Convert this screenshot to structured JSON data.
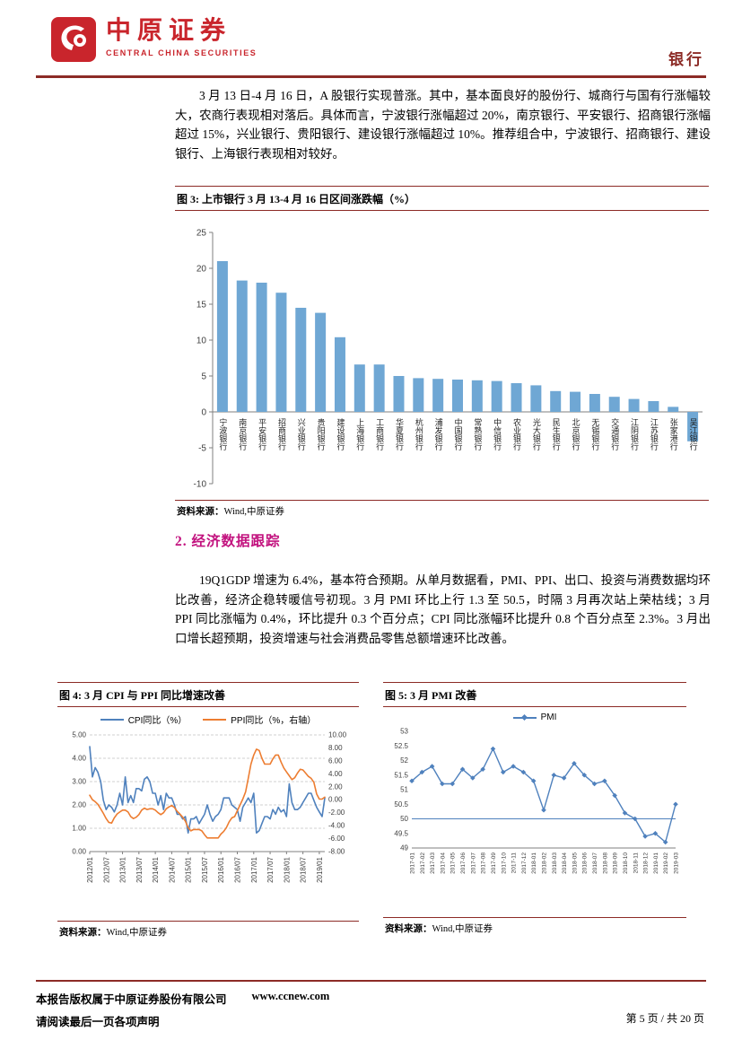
{
  "header": {
    "logo_cn": "中原证券",
    "logo_en": "CENTRAL CHINA SECURITIES",
    "sector_label": "银行"
  },
  "colors": {
    "brand_red": "#C9252C",
    "rule_red": "#8C2B26",
    "section_heading_magenta": "#C2127E",
    "bar_blue": "#6FA7D4",
    "line_blue": "#4F81BD",
    "line_orange": "#ED7D31"
  },
  "body": {
    "paragraph1": "3 月 13 日-4 月 16 日，A 股银行实现普涨。其中，基本面良好的股份行、城商行与国有行涨幅较大，农商行表现相对落后。具体而言，宁波银行涨幅超过 20%，南京银行、平安银行、招商银行涨幅超过 15%，兴业银行、贵阳银行、建设银行涨幅超过 10%。推荐组合中，宁波银行、招商银行、建设银行、上海银行表现相对较好。",
    "section2_heading": "2. 经济数据跟踪",
    "paragraph2": "19Q1GDP 增速为 6.4%，基本符合预期。从单月数据看，PMI、PPI、出口、投资与消费数据均环比改善，经济企稳转暖信号初现。3 月 PMI 环比上行 1.3 至 50.5，时隔 3 月再次站上荣枯线；3 月 PPI 同比涨幅为 0.4%，环比提升 0.3 个百分点；CPI 同比涨幅环比提升 0.8 个百分点至 2.3%。3 月出口增长超预期，投资增速与社会消费品零售总额增速环比改善。"
  },
  "figures": {
    "fig3": {
      "title": "图 3:  上市银行 3 月 13-4 月 16 日区间涨跌幅（%）",
      "source_label": "资料来源：",
      "source_value": "Wind,中原证券"
    },
    "fig4": {
      "title": "图 4:  3 月 CPI 与 PPI 同比增速改善",
      "source_label": "资料来源：",
      "source_value": "Wind,中原证券"
    },
    "fig5": {
      "title": "图 5:  3 月 PMI 改善",
      "source_label": "资料来源：",
      "source_value": "Wind,中原证券"
    }
  },
  "footer": {
    "copyright": "本报告版权属于中原证券股份有限公司",
    "website": "www.ccnew.com",
    "disclaimer": "请阅读最后一页各项声明",
    "page_info": "第 5 页 / 共 20 页"
  },
  "chart_data": [
    {
      "type": "bar",
      "title": "上市银行3月13-4月16日区间涨跌幅（%）",
      "categories": [
        "宁波银行",
        "南京银行",
        "平安银行",
        "招商银行",
        "兴业银行",
        "贵阳银行",
        "建设银行",
        "上海银行",
        "工商银行",
        "华夏银行",
        "杭州银行",
        "浦发银行",
        "中国银行",
        "常熟银行",
        "中信银行",
        "农业银行",
        "光大银行",
        "民生银行",
        "北京银行",
        "无锡银行",
        "交通银行",
        "江阴银行",
        "江苏银行",
        "张家港行",
        "吴江银行"
      ],
      "values": [
        21.0,
        18.3,
        18.0,
        16.6,
        14.5,
        13.8,
        10.4,
        6.6,
        6.6,
        5.0,
        4.7,
        4.6,
        4.5,
        4.4,
        4.3,
        4.0,
        3.7,
        2.9,
        2.8,
        2.5,
        2.1,
        1.8,
        1.5,
        0.7,
        -4.1
      ],
      "ylim": [
        -10,
        25
      ],
      "ytick_step": 5,
      "bar_color": "#6FA7D4",
      "grid": false,
      "xlabel": "",
      "ylabel": ""
    },
    {
      "type": "line",
      "title": "3月CPI与PPI同比增速改善",
      "legend_position": "top",
      "grid": true,
      "x": [
        "2012/01",
        "2012/02",
        "2012/03",
        "2012/04",
        "2012/05",
        "2012/06",
        "2012/07",
        "2012/08",
        "2012/09",
        "2012/10",
        "2012/11",
        "2012/12",
        "2013/01",
        "2013/02",
        "2013/03",
        "2013/04",
        "2013/05",
        "2013/06",
        "2013/07",
        "2013/08",
        "2013/09",
        "2013/10",
        "2013/11",
        "2013/12",
        "2014/01",
        "2014/02",
        "2014/03",
        "2014/04",
        "2014/05",
        "2014/06",
        "2014/07",
        "2014/08",
        "2014/09",
        "2014/10",
        "2014/11",
        "2014/12",
        "2015/01",
        "2015/02",
        "2015/03",
        "2015/04",
        "2015/05",
        "2015/06",
        "2015/07",
        "2015/08",
        "2015/09",
        "2015/10",
        "2015/11",
        "2015/12",
        "2016/01",
        "2016/02",
        "2016/03",
        "2016/04",
        "2016/05",
        "2016/06",
        "2016/07",
        "2016/08",
        "2016/09",
        "2016/10",
        "2016/11",
        "2016/12",
        "2017/01",
        "2017/02",
        "2017/03",
        "2017/04",
        "2017/05",
        "2017/06",
        "2017/07",
        "2017/08",
        "2017/09",
        "2017/10",
        "2017/11",
        "2017/12",
        "2018/01",
        "2018/02",
        "2018/03",
        "2018/04",
        "2018/05",
        "2018/06",
        "2018/07",
        "2018/08",
        "2018/09",
        "2018/10",
        "2018/11",
        "2018/12",
        "2019/01",
        "2019/02",
        "2019/03"
      ],
      "x_tick_every": 6,
      "left_axis": {
        "min": 0,
        "max": 5,
        "tick_step": 1
      },
      "right_axis": {
        "min": -8,
        "max": 10,
        "tick_step": 2
      },
      "series": [
        {
          "name": "CPI同比（%）",
          "axis": "left",
          "color": "#4F81BD",
          "values": [
            4.5,
            3.2,
            3.6,
            3.4,
            3.0,
            2.2,
            1.8,
            2.0,
            1.9,
            1.7,
            2.0,
            2.5,
            2.0,
            3.2,
            2.1,
            2.4,
            2.1,
            2.7,
            2.7,
            2.6,
            3.1,
            3.2,
            3.0,
            2.5,
            2.5,
            2.0,
            2.4,
            1.8,
            2.5,
            2.3,
            2.3,
            2.0,
            1.6,
            1.6,
            1.4,
            1.5,
            0.8,
            1.4,
            1.4,
            1.5,
            1.2,
            1.4,
            1.6,
            2.0,
            1.6,
            1.3,
            1.5,
            1.6,
            1.8,
            2.3,
            2.3,
            2.3,
            2.0,
            1.9,
            1.8,
            1.3,
            1.9,
            2.1,
            2.3,
            2.1,
            2.5,
            0.8,
            0.9,
            1.2,
            1.5,
            1.5,
            1.4,
            1.8,
            1.6,
            1.9,
            1.7,
            1.8,
            1.5,
            2.9,
            2.1,
            1.8,
            1.8,
            1.9,
            2.1,
            2.3,
            2.5,
            2.5,
            2.2,
            1.9,
            1.7,
            1.5,
            2.3
          ]
        },
        {
          "name": "PPI同比（%，右轴）",
          "axis": "right",
          "color": "#ED7D31",
          "values": [
            0.7,
            0.0,
            -0.3,
            -0.7,
            -1.4,
            -2.1,
            -2.9,
            -3.5,
            -3.6,
            -2.8,
            -2.2,
            -1.9,
            -1.6,
            -1.6,
            -1.9,
            -2.6,
            -2.9,
            -2.7,
            -2.3,
            -1.6,
            -1.3,
            -1.5,
            -1.4,
            -1.4,
            -1.6,
            -2.0,
            -2.3,
            -2.0,
            -1.4,
            -1.1,
            -0.9,
            -1.2,
            -1.8,
            -2.2,
            -2.7,
            -3.3,
            -4.3,
            -4.8,
            -4.6,
            -4.6,
            -4.6,
            -4.8,
            -5.4,
            -5.9,
            -5.9,
            -5.9,
            -5.9,
            -5.9,
            -5.3,
            -4.9,
            -4.3,
            -3.4,
            -2.8,
            -2.6,
            -1.7,
            -0.8,
            0.1,
            1.2,
            3.3,
            5.5,
            6.9,
            7.8,
            7.6,
            6.4,
            5.5,
            5.5,
            5.5,
            6.3,
            6.9,
            6.9,
            5.8,
            4.9,
            4.3,
            3.7,
            3.1,
            3.4,
            4.1,
            4.7,
            4.6,
            4.1,
            3.6,
            3.3,
            2.7,
            0.9,
            0.1,
            0.1,
            0.4
          ]
        }
      ]
    },
    {
      "type": "line",
      "title": "3月PMI改善",
      "legend_position": "top",
      "grid": false,
      "x": [
        "2017-01",
        "2017-02",
        "2017-03",
        "2017-04",
        "2017-05",
        "2017-06",
        "2017-07",
        "2017-08",
        "2017-09",
        "2017-10",
        "2017-11",
        "2017-12",
        "2018-01",
        "2018-02",
        "2018-03",
        "2018-04",
        "2018-05",
        "2018-06",
        "2018-07",
        "2018-08",
        "2018-09",
        "2018-10",
        "2018-11",
        "2018-12",
        "2019-01",
        "2019-02",
        "2019-03"
      ],
      "ylim": [
        49,
        53
      ],
      "ytick_step": 0.5,
      "refline": {
        "value": 50,
        "color": "#4F81BD"
      },
      "series": [
        {
          "name": "PMI",
          "color": "#4F81BD",
          "marker": "diamond",
          "values": [
            51.3,
            51.6,
            51.8,
            51.2,
            51.2,
            51.7,
            51.4,
            51.7,
            52.4,
            51.6,
            51.8,
            51.6,
            51.3,
            50.3,
            51.5,
            51.4,
            51.9,
            51.5,
            51.2,
            51.3,
            50.8,
            50.2,
            50.0,
            49.4,
            49.5,
            49.2,
            50.5
          ]
        }
      ]
    }
  ]
}
